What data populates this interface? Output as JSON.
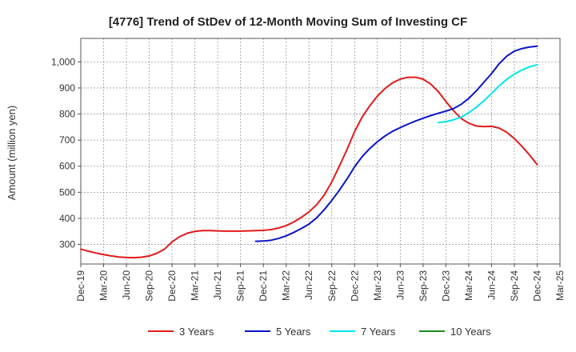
{
  "chart_data": {
    "type": "line",
    "title": "[4776]  Trend of StDev of 12-Month Moving Sum of Investing CF",
    "ylabel": "Amount (million yen)",
    "xlabel": "",
    "categories": [
      "Dec-19",
      "Mar-20",
      "Jun-20",
      "Sep-20",
      "Dec-20",
      "Mar-21",
      "Jun-21",
      "Sep-21",
      "Dec-21",
      "Mar-22",
      "Jun-22",
      "Sep-22",
      "Dec-22",
      "Mar-23",
      "Jun-23",
      "Sep-23",
      "Dec-23",
      "Mar-24",
      "Jun-24",
      "Sep-24",
      "Dec-24",
      "Mar-25"
    ],
    "yticks": [
      "300",
      "400",
      "500",
      "600",
      "700",
      "800",
      "900",
      "1,000"
    ],
    "ylim": [
      225,
      1090
    ],
    "grid": true,
    "legend_position": "bottom",
    "series": [
      {
        "name": "3 Years",
        "color": "#e31a1c",
        "x": [
          "Dec-19",
          "Jan-20",
          "Feb-20",
          "Mar-20",
          "Apr-20",
          "May-20",
          "Jun-20",
          "Jul-20",
          "Aug-20",
          "Sep-20",
          "Oct-20",
          "Nov-20",
          "Dec-20",
          "Jan-21",
          "Feb-21",
          "Mar-21",
          "Apr-21",
          "May-21",
          "Jun-21",
          "Jul-21",
          "Aug-21",
          "Sep-21",
          "Oct-21",
          "Nov-21",
          "Dec-21",
          "Jan-22",
          "Feb-22",
          "Mar-22",
          "Apr-22",
          "May-22",
          "Jun-22",
          "Jul-22",
          "Aug-22",
          "Sep-22",
          "Oct-22",
          "Nov-22",
          "Dec-22",
          "Jan-23",
          "Feb-23",
          "Mar-23",
          "Apr-23",
          "May-23",
          "Jun-23",
          "Jul-23",
          "Aug-23",
          "Sep-23",
          "Oct-23",
          "Nov-23",
          "Dec-23",
          "Jan-24",
          "Feb-24",
          "Mar-24",
          "Apr-24",
          "May-24",
          "Jun-24",
          "Jul-24",
          "Aug-24",
          "Sep-24",
          "Oct-24",
          "Nov-24",
          "Dec-24"
        ],
        "values": [
          282,
          274,
          267,
          261,
          256,
          252,
          250,
          249,
          251,
          256,
          266,
          282,
          310,
          330,
          343,
          350,
          353,
          353,
          352,
          351,
          351,
          351,
          352,
          353,
          354,
          357,
          363,
          372,
          386,
          404,
          425,
          452,
          489,
          540,
          601,
          664,
          733,
          789,
          832,
          869,
          898,
          920,
          934,
          941,
          941,
          934,
          915,
          886,
          848,
          813,
          783,
          765,
          754,
          752,
          753,
          746,
          730,
          706,
          676,
          643,
          606
        ]
      },
      {
        "name": "5 Years",
        "color": "#0a14c8",
        "x": [
          "Nov-21",
          "Dec-21",
          "Jan-22",
          "Feb-22",
          "Mar-22",
          "Apr-22",
          "May-22",
          "Jun-22",
          "Jul-22",
          "Aug-22",
          "Sep-22",
          "Oct-22",
          "Nov-22",
          "Dec-22",
          "Jan-23",
          "Feb-23",
          "Mar-23",
          "Apr-23",
          "May-23",
          "Jun-23",
          "Jul-23",
          "Aug-23",
          "Sep-23",
          "Oct-23",
          "Nov-23",
          "Dec-23",
          "Jan-24",
          "Feb-24",
          "Mar-24",
          "Apr-24",
          "May-24",
          "Jun-24",
          "Jul-24",
          "Aug-24",
          "Sep-24",
          "Oct-24",
          "Nov-24",
          "Dec-24"
        ],
        "values": [
          312,
          313,
          316,
          323,
          333,
          346,
          361,
          378,
          402,
          433,
          469,
          508,
          551,
          598,
          637,
          668,
          694,
          716,
          734,
          748,
          761,
          773,
          784,
          794,
          803,
          811,
          821,
          837,
          860,
          889,
          922,
          955,
          993,
          1022,
          1041,
          1051,
          1057,
          1060
        ]
      },
      {
        "name": "7 Years",
        "color": "#00e5ee",
        "x": [
          "Nov-23",
          "Dec-23",
          "Jan-24",
          "Feb-24",
          "Mar-24",
          "Apr-24",
          "May-24",
          "Jun-24",
          "Jul-24",
          "Aug-24",
          "Sep-24",
          "Oct-24",
          "Nov-24",
          "Dec-24"
        ],
        "values": [
          767,
          771,
          778,
          788,
          805,
          826,
          851,
          879,
          908,
          933,
          953,
          969,
          981,
          989
        ]
      },
      {
        "name": "10 Years",
        "color": "#1a8a1a",
        "x": [],
        "values": []
      }
    ]
  }
}
